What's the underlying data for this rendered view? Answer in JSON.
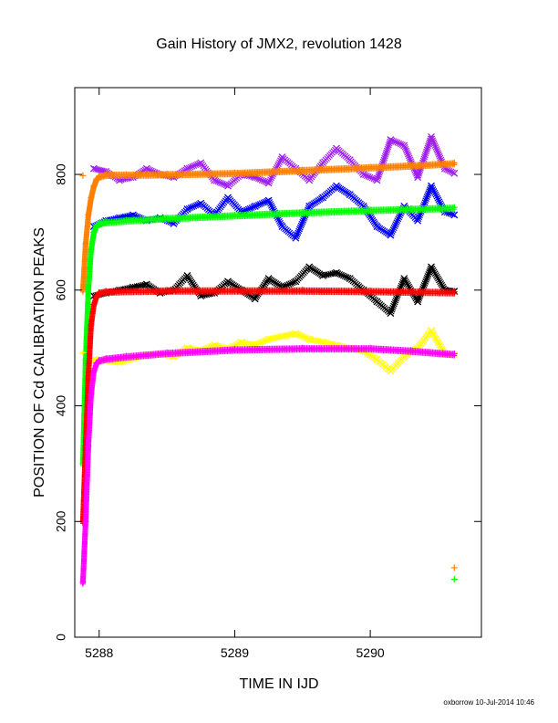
{
  "chart_data": {
    "type": "scatter",
    "title": "Gain History of JMX2, revolution 1428",
    "xlabel": "TIME IN IJD",
    "ylabel": "POSITION OF Cd CALIBRATION PEAKS",
    "xlim": [
      5287.82,
      5290.82
    ],
    "ylim": [
      0,
      950
    ],
    "x_ticks": [
      5288,
      5289,
      5290
    ],
    "y_ticks": [
      0,
      200,
      400,
      600,
      800
    ],
    "grid": false,
    "legend": "none",
    "footer": "oxborrow 10-Jul-2014 10:46",
    "series": [
      {
        "role": "raw",
        "color": "#a020f0",
        "marker": "x",
        "x": [
          5287.96,
          5288.05,
          5288.15,
          5288.25,
          5288.35,
          5288.45,
          5288.55,
          5288.65,
          5288.75,
          5288.85,
          5288.95,
          5289.05,
          5289.15,
          5289.25,
          5289.35,
          5289.45,
          5289.55,
          5289.65,
          5289.75,
          5289.85,
          5289.95,
          5290.05,
          5290.15,
          5290.25,
          5290.35,
          5290.45,
          5290.55,
          5290.62
        ],
        "y": [
          810,
          805,
          790,
          795,
          810,
          800,
          795,
          810,
          820,
          790,
          780,
          800,
          795,
          785,
          830,
          810,
          790,
          820,
          845,
          825,
          800,
          790,
          860,
          850,
          795,
          865,
          810,
          802
        ]
      },
      {
        "role": "raw",
        "color": "#0000ff",
        "marker": "x",
        "x": [
          5287.96,
          5288.05,
          5288.15,
          5288.25,
          5288.35,
          5288.45,
          5288.55,
          5288.65,
          5288.75,
          5288.85,
          5288.95,
          5289.05,
          5289.15,
          5289.25,
          5289.35,
          5289.45,
          5289.55,
          5289.65,
          5289.75,
          5289.85,
          5289.95,
          5290.05,
          5290.15,
          5290.25,
          5290.35,
          5290.45,
          5290.55,
          5290.62
        ],
        "y": [
          710,
          720,
          725,
          730,
          720,
          725,
          715,
          740,
          750,
          730,
          760,
          735,
          745,
          755,
          710,
          690,
          745,
          760,
          780,
          765,
          745,
          710,
          695,
          745,
          720,
          780,
          735,
          730
        ]
      },
      {
        "role": "raw",
        "color": "#000000",
        "marker": "x",
        "x": [
          5287.96,
          5288.05,
          5288.15,
          5288.25,
          5288.35,
          5288.45,
          5288.55,
          5288.65,
          5288.75,
          5288.85,
          5288.95,
          5289.05,
          5289.15,
          5289.25,
          5289.35,
          5289.45,
          5289.55,
          5289.65,
          5289.75,
          5289.85,
          5289.95,
          5290.05,
          5290.15,
          5290.25,
          5290.35,
          5290.45,
          5290.55,
          5290.62
        ],
        "y": [
          590,
          595,
          600,
          605,
          610,
          595,
          600,
          625,
          590,
          595,
          615,
          600,
          585,
          620,
          605,
          615,
          640,
          625,
          630,
          620,
          600,
          580,
          560,
          620,
          580,
          640,
          600,
          598
        ]
      },
      {
        "role": "raw",
        "color": "#ffff00",
        "marker": "x",
        "x": [
          5287.96,
          5288.05,
          5288.15,
          5288.25,
          5288.35,
          5288.45,
          5288.55,
          5288.65,
          5288.75,
          5288.85,
          5288.95,
          5289.05,
          5289.15,
          5289.25,
          5289.35,
          5289.45,
          5289.55,
          5289.65,
          5289.75,
          5289.85,
          5289.95,
          5290.05,
          5290.15,
          5290.25,
          5290.35,
          5290.45,
          5290.55,
          5290.62
        ],
        "y": [
          480,
          478,
          475,
          482,
          488,
          490,
          485,
          500,
          495,
          505,
          498,
          510,
          505,
          515,
          520,
          525,
          515,
          510,
          505,
          500,
          495,
          480,
          460,
          485,
          500,
          530,
          490,
          488
        ]
      },
      {
        "role": "fit",
        "color": "#ff8000",
        "marker": "+",
        "x": [
          5287.88,
          5287.9,
          5287.92,
          5287.94,
          5287.96,
          5287.98,
          5288.0,
          5288.05,
          5288.2,
          5288.5,
          5289.0,
          5289.5,
          5290.0,
          5290.3,
          5290.62
        ],
        "y": [
          600,
          680,
          730,
          760,
          780,
          792,
          797,
          800,
          800,
          801,
          803,
          808,
          813,
          816,
          820
        ]
      },
      {
        "role": "fit",
        "color": "#00ff00",
        "marker": "+",
        "x": [
          5287.88,
          5287.9,
          5287.92,
          5287.94,
          5287.96,
          5287.98,
          5288.0,
          5288.05,
          5288.2,
          5288.5,
          5289.0,
          5289.5,
          5290.0,
          5290.3,
          5290.62
        ],
        "y": [
          300,
          480,
          600,
          670,
          700,
          712,
          716,
          718,
          721,
          725,
          730,
          735,
          739,
          741,
          743
        ]
      },
      {
        "role": "fit",
        "color": "#ff0000",
        "marker": "+",
        "x": [
          5287.88,
          5287.9,
          5287.92,
          5287.94,
          5287.96,
          5287.98,
          5288.0,
          5288.05,
          5288.2,
          5288.5,
          5289.0,
          5289.5,
          5290.0,
          5290.3,
          5290.62
        ],
        "y": [
          200,
          330,
          450,
          540,
          575,
          590,
          596,
          598,
          599,
          600,
          600,
          600,
          599,
          598,
          597
        ]
      },
      {
        "role": "fit",
        "color": "#ff00ff",
        "marker": "+",
        "x": [
          5287.88,
          5287.9,
          5287.92,
          5287.94,
          5287.96,
          5287.98,
          5288.0,
          5288.05,
          5288.2,
          5288.5,
          5289.0,
          5289.5,
          5290.0,
          5290.3,
          5290.62
        ],
        "y": [
          95,
          200,
          330,
          420,
          460,
          474,
          479,
          482,
          486,
          492,
          498,
          500,
          500,
          496,
          490
        ]
      }
    ],
    "outliers": [
      {
        "x": 5290.62,
        "y": 120,
        "color": "#ff8000",
        "marker": "+"
      },
      {
        "x": 5290.62,
        "y": 100,
        "color": "#00ff00",
        "marker": "+"
      },
      {
        "x": 5287.88,
        "y": 798,
        "color": "#ff8000",
        "marker": "+"
      },
      {
        "x": 5287.88,
        "y": 492,
        "color": "#ffff00",
        "marker": "+"
      }
    ]
  }
}
